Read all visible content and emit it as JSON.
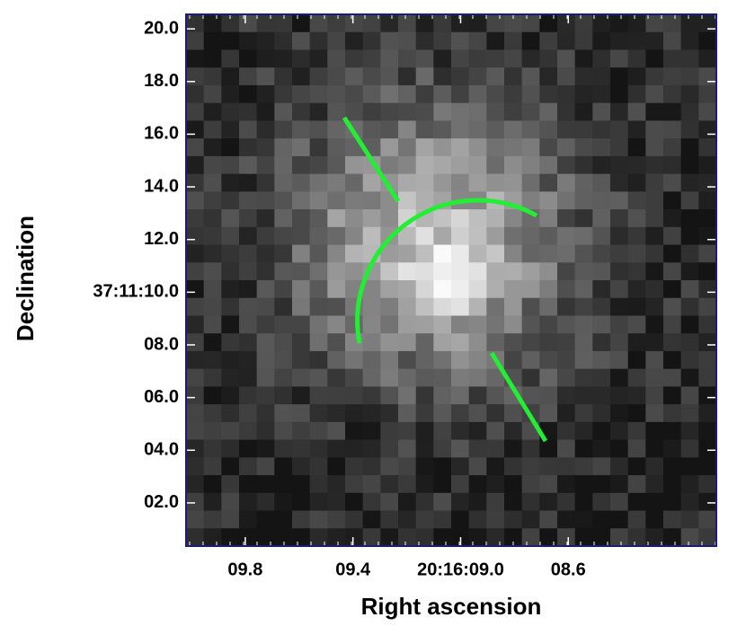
{
  "chart_data": {
    "type": "image",
    "x_label": "Right ascension",
    "y_label": "Declination",
    "xlim": [
      10.02,
      8.05
    ],
    "ylim": [
      0.36,
      20.55
    ],
    "xticks": [
      {
        "value": 9.8,
        "label": "09.8"
      },
      {
        "value": 9.4,
        "label": "09.4"
      },
      {
        "value": 9.0,
        "label": "20:16:09.0"
      },
      {
        "value": 8.6,
        "label": "08.6"
      }
    ],
    "yticks": [
      {
        "value": 20,
        "label": "20.0"
      },
      {
        "value": 18,
        "label": "18.0"
      },
      {
        "value": 16,
        "label": "16.0"
      },
      {
        "value": 14,
        "label": "14.0"
      },
      {
        "value": 12,
        "label": "12.0"
      },
      {
        "value": 10,
        "label": "37:11:10.0"
      },
      {
        "value": 8,
        "label": "08.0"
      },
      {
        "value": 6,
        "label": "06.0"
      },
      {
        "value": 4,
        "label": "04.0"
      },
      {
        "value": 2,
        "label": "02.0"
      }
    ]
  }
}
